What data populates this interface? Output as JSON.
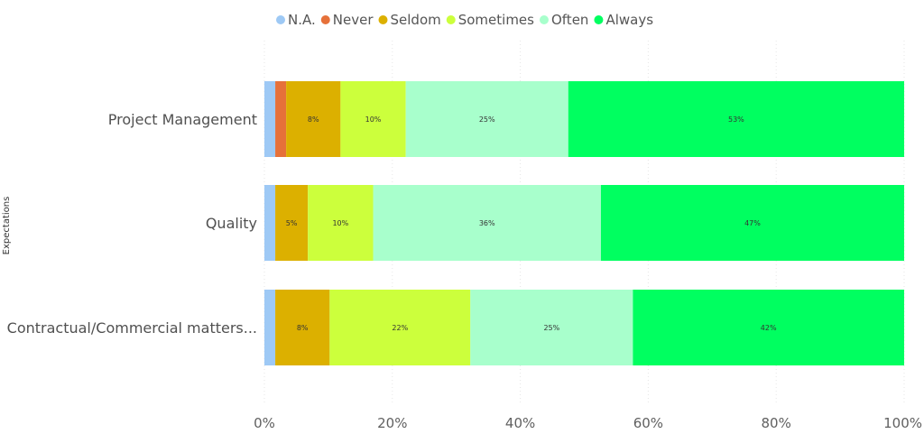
{
  "chart_data": {
    "type": "bar",
    "orientation": "horizontal",
    "stacked": "percent",
    "ylabel": "Expectations",
    "categories": [
      "Project Management",
      "Quality",
      "Contractual/Commercial matters..."
    ],
    "series": [
      {
        "name": "N.A.",
        "color": "#9ec9f5",
        "values": [
          1.7,
          1.7,
          1.7
        ],
        "labels": [
          "",
          "",
          ""
        ]
      },
      {
        "name": "Never",
        "color": "#e6713a",
        "values": [
          1.7,
          0,
          0
        ],
        "labels": [
          "",
          "",
          ""
        ]
      },
      {
        "name": "Seldom",
        "color": "#dcb000",
        "values": [
          8.5,
          5.1,
          8.5
        ],
        "labels": [
          "8%",
          "5%",
          "8%"
        ]
      },
      {
        "name": "Sometimes",
        "color": "#ccff3c",
        "values": [
          10.2,
          10.2,
          22.0
        ],
        "labels": [
          "10%",
          "10%",
          "22%"
        ]
      },
      {
        "name": "Often",
        "color": "#a8ffcc",
        "values": [
          25.4,
          35.6,
          25.4
        ],
        "labels": [
          "25%",
          "36%",
          "25%"
        ]
      },
      {
        "name": "Always",
        "color": "#00ff60",
        "values": [
          52.5,
          47.4,
          42.4
        ],
        "labels": [
          "53%",
          "47%",
          "42%"
        ]
      }
    ],
    "xlim": [
      0,
      100
    ],
    "x_ticks": [
      "0%",
      "20%",
      "40%",
      "60%",
      "80%",
      "100%"
    ],
    "legend_position": "top",
    "grid": true
  }
}
